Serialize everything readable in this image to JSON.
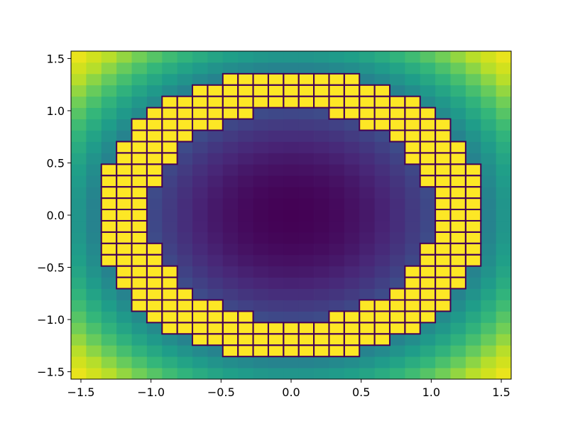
{
  "chart_data": {
    "type": "heatmap",
    "title": "",
    "xlabel": "",
    "ylabel": "",
    "colormap": "viridis",
    "grid": false,
    "x_range": [
      -1.5708,
      1.5708
    ],
    "y_range": [
      -1.5708,
      1.5708
    ],
    "n_cols": 29,
    "n_rows": 29,
    "cell_value": "x^2 + y^2",
    "value_range": [
      0,
      4.9348
    ],
    "highlight": {
      "description": "cells inside annulus outlined with dark border",
      "r_min": 1.0,
      "r_max": 1.4,
      "edge_color": "#440154"
    },
    "x_ticks": [
      {
        "value": -1.5,
        "label": "−1.5"
      },
      {
        "value": -1.0,
        "label": "−1.0"
      },
      {
        "value": -0.5,
        "label": "−0.5"
      },
      {
        "value": 0.0,
        "label": "0.0"
      },
      {
        "value": 0.5,
        "label": "0.5"
      },
      {
        "value": 1.0,
        "label": "1.0"
      },
      {
        "value": 1.5,
        "label": "1.5"
      }
    ],
    "y_ticks": [
      {
        "value": 1.5,
        "label": "1.5"
      },
      {
        "value": 1.0,
        "label": "1.0"
      },
      {
        "value": 0.5,
        "label": "0.5"
      },
      {
        "value": 0.0,
        "label": "0.0"
      },
      {
        "value": -0.5,
        "label": "−0.5"
      },
      {
        "value": -1.0,
        "label": "−1.0"
      },
      {
        "value": -1.5,
        "label": "−1.5"
      }
    ]
  }
}
